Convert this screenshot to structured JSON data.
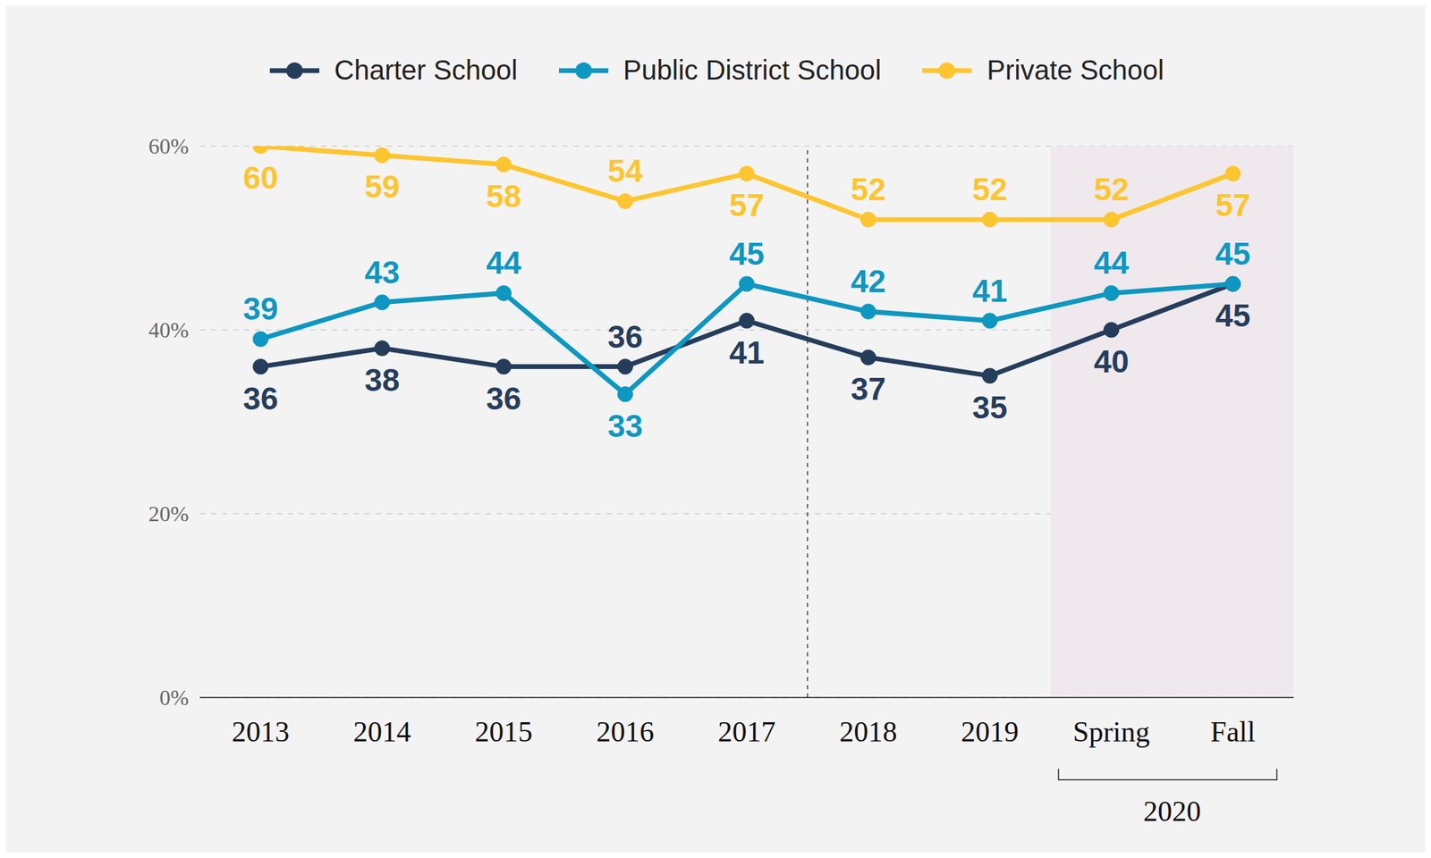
{
  "chart_data": {
    "type": "line",
    "categories": [
      "2013",
      "2014",
      "2015",
      "2016",
      "2017",
      "2018",
      "2019",
      "Spring",
      "Fall"
    ],
    "series": [
      {
        "name": "Charter School",
        "color": "#253d5b",
        "values": [
          36,
          38,
          36,
          36,
          41,
          37,
          35,
          40,
          45
        ]
      },
      {
        "name": "Public District School",
        "color": "#0e97c0",
        "values": [
          39,
          43,
          44,
          33,
          45,
          42,
          41,
          44,
          45
        ]
      },
      {
        "name": "Private School",
        "color": "#fdc52f",
        "values": [
          60,
          59,
          58,
          54,
          57,
          52,
          52,
          52,
          57
        ]
      }
    ],
    "ylim": [
      0,
      60
    ],
    "yticks": [
      {
        "value": 0,
        "label": "0%"
      },
      {
        "value": 20,
        "label": "20%"
      },
      {
        "value": 40,
        "label": "40%"
      },
      {
        "value": 60,
        "label": "60%"
      }
    ],
    "grid": true,
    "legend": "top",
    "data_labels": true,
    "marker": "circle",
    "annotations": [
      {
        "type": "vline",
        "x": [
          "2017",
          "2018"
        ]
      },
      {
        "type": "span",
        "x": [
          "Spring",
          "Fall"
        ],
        "text": "2020"
      }
    ]
  }
}
